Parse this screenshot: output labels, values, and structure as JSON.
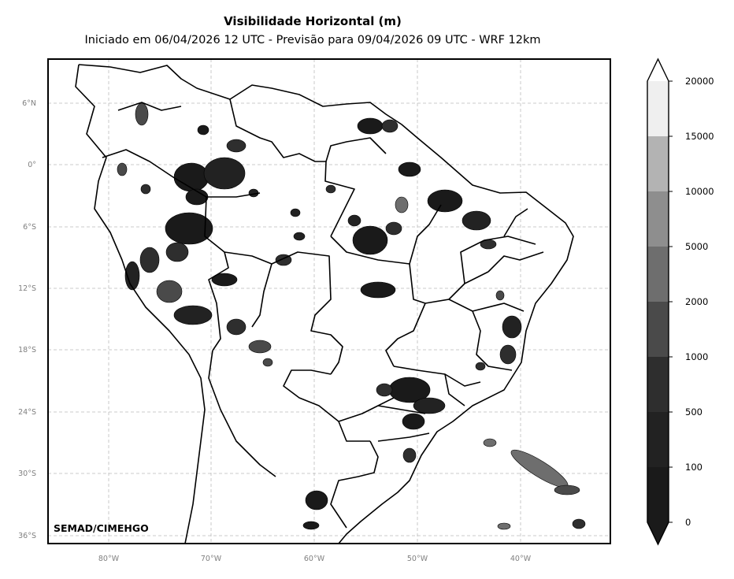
{
  "title": "Visibilidade Horizontal (m)",
  "subtitle": "Iniciado em 06/04/2026 12 UTC - Previsão para 09/04/2026 09 UTC - WRF 12km",
  "credit": "SEMAD/CIMEHGO",
  "map": {
    "projection": "PlateCarree",
    "lon_range": [
      -86,
      -31.5
    ],
    "lat_range": [
      -37,
      10
    ],
    "lat_ticks": [
      "6°N",
      "0°",
      "6°S",
      "12°S",
      "18°S",
      "24°S",
      "30°S",
      "36°S"
    ],
    "lon_ticks": [
      "80°W",
      "70°W",
      "60°W",
      "50°W",
      "40°W"
    ],
    "gridlines": true,
    "gridline_color": "#bbbbbb"
  },
  "colorbar": {
    "labels": [
      "0",
      "100",
      "500",
      "1000",
      "2000",
      "5000",
      "10000",
      "15000",
      "20000"
    ],
    "colors": [
      "#1a1a1a",
      "#222222",
      "#2e2e2e",
      "#4a4a4a",
      "#6e6e6e",
      "#8e8e8e",
      "#b3b3b3",
      "#efefef"
    ],
    "extend": "both"
  }
}
